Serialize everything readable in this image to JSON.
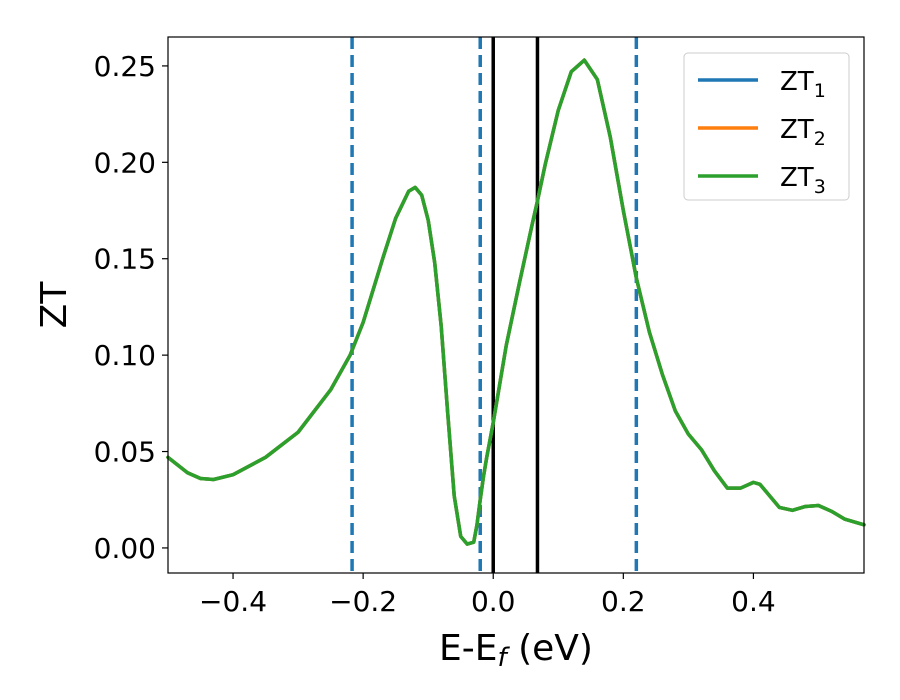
{
  "chart_data": {
    "type": "line",
    "xlabel": "E-E",
    "xlabel_sub": "f",
    "xlabel_unit": " (eV)",
    "ylabel": "ZT",
    "xlim": [
      -0.5,
      0.57
    ],
    "ylim": [
      -0.013,
      0.265
    ],
    "xticks": [
      -0.4,
      -0.2,
      0.0,
      0.2,
      0.4
    ],
    "xtick_labels": [
      "−0.4",
      "−0.2",
      "0.0",
      "0.2",
      "0.4"
    ],
    "yticks": [
      0.0,
      0.05,
      0.1,
      0.15,
      0.2,
      0.25
    ],
    "ytick_labels": [
      "0.00",
      "0.05",
      "0.10",
      "0.15",
      "0.20",
      "0.25"
    ],
    "grid": false,
    "legend_position": "top-right",
    "series": [
      {
        "name": "ZT",
        "name_sub": "1",
        "color": "#1f77b4",
        "x": [
          -0.5,
          -0.47,
          -0.45,
          -0.43,
          -0.4,
          -0.35,
          -0.3,
          -0.25,
          -0.22,
          -0.2,
          -0.17,
          -0.15,
          -0.13,
          -0.12,
          -0.11,
          -0.1,
          -0.09,
          -0.08,
          -0.07,
          -0.06,
          -0.05,
          -0.04,
          -0.03,
          -0.025,
          -0.02,
          -0.015,
          -0.01,
          -0.005,
          0.0,
          0.01,
          0.02,
          0.04,
          0.06,
          0.068,
          0.08,
          0.1,
          0.12,
          0.14,
          0.16,
          0.18,
          0.2,
          0.22,
          0.24,
          0.26,
          0.28,
          0.3,
          0.32,
          0.34,
          0.36,
          0.38,
          0.4,
          0.41,
          0.42,
          0.44,
          0.46,
          0.48,
          0.5,
          0.52,
          0.54,
          0.57
        ],
        "y": [
          0.047,
          0.039,
          0.036,
          0.0355,
          0.038,
          0.047,
          0.06,
          0.082,
          0.1,
          0.117,
          0.15,
          0.171,
          0.185,
          0.187,
          0.183,
          0.17,
          0.148,
          0.115,
          0.07,
          0.027,
          0.006,
          0.002,
          0.003,
          0.012,
          0.025,
          0.037,
          0.047,
          0.056,
          0.065,
          0.085,
          0.105,
          0.137,
          0.168,
          0.18,
          0.199,
          0.227,
          0.247,
          0.253,
          0.243,
          0.213,
          0.175,
          0.14,
          0.112,
          0.09,
          0.071,
          0.059,
          0.051,
          0.04,
          0.031,
          0.031,
          0.034,
          0.033,
          0.029,
          0.021,
          0.0195,
          0.0215,
          0.022,
          0.019,
          0.015,
          0.012
        ]
      },
      {
        "name": "ZT",
        "name_sub": "2",
        "color": "#ff7f0e",
        "x": [
          -0.5,
          -0.47,
          -0.45,
          -0.43,
          -0.4,
          -0.35,
          -0.3,
          -0.25,
          -0.22,
          -0.2,
          -0.17,
          -0.15,
          -0.13,
          -0.12,
          -0.11,
          -0.1,
          -0.09,
          -0.08,
          -0.07,
          -0.06,
          -0.05,
          -0.04,
          -0.03,
          -0.025,
          -0.02,
          -0.015,
          -0.01,
          -0.005,
          0.0,
          0.01,
          0.02,
          0.04,
          0.06,
          0.068,
          0.08,
          0.1,
          0.12,
          0.14,
          0.16,
          0.18,
          0.2,
          0.22,
          0.24,
          0.26,
          0.28,
          0.3,
          0.32,
          0.34,
          0.36,
          0.38,
          0.4,
          0.41,
          0.42,
          0.44,
          0.46,
          0.48,
          0.5,
          0.52,
          0.54,
          0.57
        ],
        "y": [
          0.047,
          0.039,
          0.036,
          0.0355,
          0.038,
          0.047,
          0.06,
          0.082,
          0.1,
          0.117,
          0.15,
          0.171,
          0.185,
          0.187,
          0.183,
          0.17,
          0.148,
          0.115,
          0.07,
          0.027,
          0.006,
          0.002,
          0.003,
          0.012,
          0.025,
          0.037,
          0.047,
          0.056,
          0.065,
          0.085,
          0.105,
          0.137,
          0.168,
          0.18,
          0.199,
          0.227,
          0.247,
          0.253,
          0.243,
          0.213,
          0.175,
          0.14,
          0.112,
          0.09,
          0.071,
          0.059,
          0.051,
          0.04,
          0.031,
          0.031,
          0.034,
          0.033,
          0.029,
          0.021,
          0.0195,
          0.0215,
          0.022,
          0.019,
          0.015,
          0.012
        ]
      },
      {
        "name": "ZT",
        "name_sub": "3",
        "color": "#2ca02c",
        "x": [
          -0.5,
          -0.47,
          -0.45,
          -0.43,
          -0.4,
          -0.35,
          -0.3,
          -0.25,
          -0.22,
          -0.2,
          -0.17,
          -0.15,
          -0.13,
          -0.12,
          -0.11,
          -0.1,
          -0.09,
          -0.08,
          -0.07,
          -0.06,
          -0.05,
          -0.04,
          -0.03,
          -0.025,
          -0.02,
          -0.015,
          -0.01,
          -0.005,
          0.0,
          0.01,
          0.02,
          0.04,
          0.06,
          0.068,
          0.08,
          0.1,
          0.12,
          0.14,
          0.16,
          0.18,
          0.2,
          0.22,
          0.24,
          0.26,
          0.28,
          0.3,
          0.32,
          0.34,
          0.36,
          0.38,
          0.4,
          0.41,
          0.42,
          0.44,
          0.46,
          0.48,
          0.5,
          0.52,
          0.54,
          0.57
        ],
        "y": [
          0.047,
          0.039,
          0.036,
          0.0355,
          0.038,
          0.047,
          0.06,
          0.082,
          0.1,
          0.117,
          0.15,
          0.171,
          0.185,
          0.187,
          0.183,
          0.17,
          0.148,
          0.115,
          0.07,
          0.027,
          0.006,
          0.002,
          0.003,
          0.012,
          0.025,
          0.037,
          0.047,
          0.056,
          0.065,
          0.085,
          0.105,
          0.137,
          0.168,
          0.18,
          0.199,
          0.227,
          0.247,
          0.253,
          0.243,
          0.213,
          0.175,
          0.14,
          0.112,
          0.09,
          0.071,
          0.059,
          0.051,
          0.04,
          0.031,
          0.031,
          0.034,
          0.033,
          0.029,
          0.021,
          0.0195,
          0.0215,
          0.022,
          0.019,
          0.015,
          0.012
        ]
      }
    ],
    "vlines": [
      {
        "x": -0.217,
        "style": "dashed",
        "color": "#1f77b4"
      },
      {
        "x": -0.02,
        "style": "dashed",
        "color": "#1f77b4"
      },
      {
        "x": 0.0,
        "style": "solid",
        "color": "#000000"
      },
      {
        "x": 0.068,
        "style": "solid",
        "color": "#000000"
      },
      {
        "x": 0.22,
        "style": "dashed",
        "color": "#1f77b4"
      }
    ]
  }
}
